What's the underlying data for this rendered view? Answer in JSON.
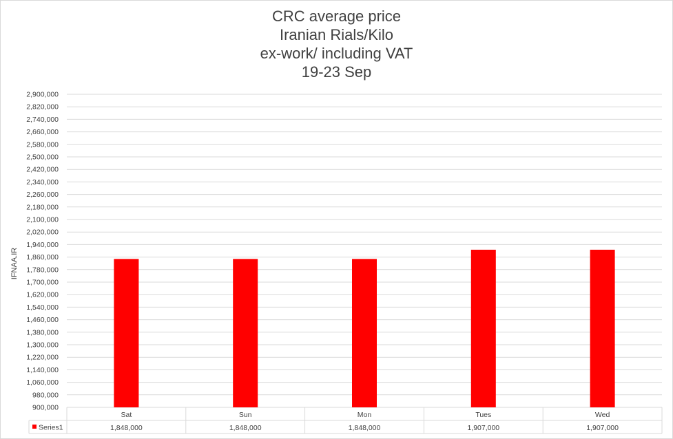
{
  "chart_data": {
    "type": "bar",
    "title_lines": [
      "CRC average price",
      "Iranian Rials/Kilo",
      "ex-work/ including VAT",
      "19-23 Sep"
    ],
    "ylabel": "IFNAA.IR",
    "categories": [
      "Sat",
      "Sun",
      "Mon",
      "Tues",
      "Wed"
    ],
    "series": [
      {
        "name": "Series1",
        "values": [
          1848000,
          1848000,
          1848000,
          1907000,
          1907000
        ],
        "value_labels": [
          "1,848,000",
          "1,848,000",
          "1,848,000",
          "1,907,000",
          "1,907,000"
        ],
        "color": "#ff0000"
      }
    ],
    "ylim": [
      900000,
      2900000
    ],
    "ytick_step": 80000,
    "ytick_labels": [
      "2,900,000",
      "2,820,000",
      "2,740,000",
      "2,660,000",
      "2,580,000",
      "2,500,000",
      "2,420,000",
      "2,340,000",
      "2,260,000",
      "2,180,000",
      "2,100,000",
      "2,020,000",
      "1,940,000",
      "1,860,000",
      "1,780,000",
      "1,700,000",
      "1,620,000",
      "1,540,000",
      "1,460,000",
      "1,380,000",
      "1,300,000",
      "1,220,000",
      "1,140,000",
      "1,060,000",
      "980,000",
      "900,000"
    ],
    "grid": true,
    "legend": "data-table",
    "colors": {
      "bar": "#ff0000",
      "grid": "#d9d9d9",
      "text": "#404040"
    }
  }
}
